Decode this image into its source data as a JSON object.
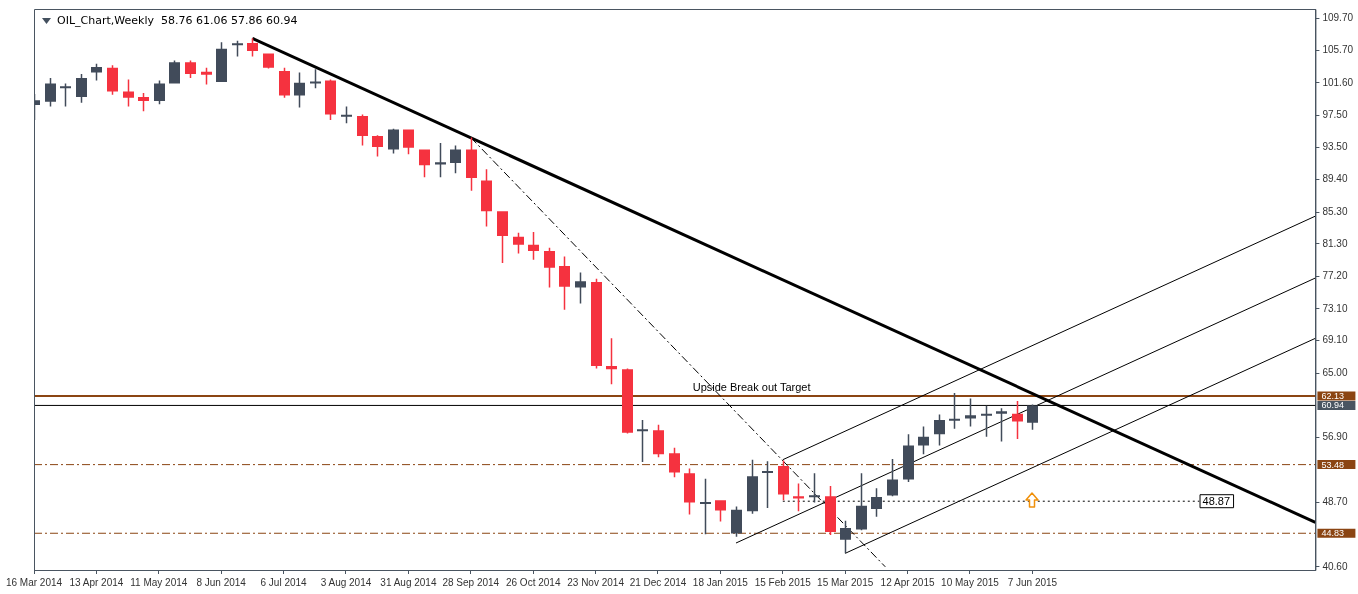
{
  "chart_data": {
    "type": "candlestick",
    "title": "OIL_Chart,Weekly  58.76 61.06 57.86 60.94",
    "x": [
      "2014-03-16",
      "2014-03-23",
      "2014-03-30",
      "2014-04-06",
      "2014-04-13",
      "2014-04-20",
      "2014-04-27",
      "2014-05-04",
      "2014-05-11",
      "2014-05-18",
      "2014-05-25",
      "2014-06-01",
      "2014-06-08",
      "2014-06-15",
      "2014-06-22",
      "2014-06-29",
      "2014-07-06",
      "2014-07-13",
      "2014-07-20",
      "2014-07-27",
      "2014-08-03",
      "2014-08-10",
      "2014-08-17",
      "2014-08-24",
      "2014-08-31",
      "2014-09-07",
      "2014-09-14",
      "2014-09-21",
      "2014-09-28",
      "2014-10-05",
      "2014-10-12",
      "2014-10-19",
      "2014-10-26",
      "2014-11-02",
      "2014-11-09",
      "2014-11-16",
      "2014-11-23",
      "2014-11-30",
      "2014-12-07",
      "2014-12-14",
      "2014-12-21",
      "2014-12-28",
      "2015-01-04",
      "2015-01-11",
      "2015-01-18",
      "2015-01-25",
      "2015-02-01",
      "2015-02-08",
      "2015-02-15",
      "2015-02-22",
      "2015-03-01",
      "2015-03-08",
      "2015-03-15",
      "2015-03-22",
      "2015-03-29",
      "2015-04-05",
      "2015-04-12",
      "2015-04-19",
      "2015-04-26",
      "2015-05-03",
      "2015-05-10",
      "2015-05-17",
      "2015-05-24",
      "2015-05-31",
      "2015-06-07"
    ],
    "ohlc": [
      [
        98.8,
        100.2,
        96.9,
        99.4
      ],
      [
        99.2,
        102.2,
        98.6,
        101.5
      ],
      [
        101.0,
        101.5,
        98.6,
        101.1
      ],
      [
        99.8,
        102.7,
        99.1,
        102.2
      ],
      [
        102.9,
        104.0,
        101.9,
        103.6
      ],
      [
        103.5,
        103.8,
        100.1,
        100.5
      ],
      [
        100.5,
        102.0,
        98.6,
        99.7
      ],
      [
        99.8,
        100.3,
        98.0,
        99.3
      ],
      [
        99.3,
        101.9,
        98.9,
        101.5
      ],
      [
        101.5,
        104.4,
        101.5,
        104.2
      ],
      [
        104.2,
        104.4,
        102.2,
        102.7
      ],
      [
        103.0,
        103.5,
        101.4,
        102.6
      ],
      [
        101.7,
        106.7,
        101.7,
        105.9
      ],
      [
        106.4,
        106.9,
        104.9,
        106.5
      ],
      [
        106.6,
        107.2,
        104.9,
        105.6
      ],
      [
        105.3,
        105.3,
        103.4,
        103.5
      ],
      [
        103.1,
        103.5,
        99.7,
        100.0
      ],
      [
        100.0,
        102.9,
        98.5,
        101.6
      ],
      [
        101.6,
        103.3,
        100.9,
        101.7
      ],
      [
        101.9,
        102.0,
        96.9,
        97.6
      ],
      [
        97.4,
        98.6,
        96.5,
        97.5
      ],
      [
        97.4,
        97.6,
        93.7,
        94.9
      ],
      [
        94.9,
        95.0,
        92.3,
        93.5
      ],
      [
        93.2,
        95.8,
        92.7,
        95.7
      ],
      [
        95.7,
        95.7,
        92.6,
        93.4
      ],
      [
        93.2,
        93.2,
        89.7,
        91.2
      ],
      [
        91.3,
        94.0,
        89.7,
        91.6
      ],
      [
        91.5,
        93.7,
        90.2,
        93.2
      ],
      [
        93.2,
        94.7,
        88.0,
        89.6
      ],
      [
        89.3,
        90.7,
        83.5,
        85.4
      ],
      [
        85.4,
        85.4,
        78.9,
        82.3
      ],
      [
        82.2,
        82.7,
        80.1,
        81.2
      ],
      [
        81.2,
        82.8,
        79.3,
        80.4
      ],
      [
        80.4,
        80.8,
        75.8,
        78.3
      ],
      [
        78.5,
        79.7,
        73.0,
        75.9
      ],
      [
        75.8,
        77.7,
        73.8,
        76.6
      ],
      [
        76.5,
        76.9,
        65.6,
        65.9
      ],
      [
        65.9,
        69.4,
        63.6,
        65.5
      ],
      [
        65.5,
        65.6,
        57.4,
        57.5
      ],
      [
        57.7,
        59.1,
        53.8,
        57.9
      ],
      [
        57.8,
        58.5,
        54.4,
        54.8
      ],
      [
        54.9,
        55.6,
        51.9,
        52.5
      ],
      [
        52.4,
        53.0,
        47.2,
        48.7
      ],
      [
        48.6,
        51.7,
        44.7,
        48.7
      ],
      [
        49.0,
        49.0,
        46.3,
        47.7
      ],
      [
        44.8,
        48.2,
        44.4,
        47.8
      ],
      [
        47.6,
        54.1,
        47.3,
        52.0
      ],
      [
        52.5,
        53.9,
        48.0,
        52.6
      ],
      [
        53.3,
        54.0,
        49.0,
        49.7
      ],
      [
        49.5,
        51.1,
        47.6,
        49.2
      ],
      [
        49.4,
        52.4,
        48.7,
        49.6
      ],
      [
        49.5,
        50.8,
        44.6,
        45.0
      ],
      [
        44.0,
        46.4,
        42.3,
        45.5
      ],
      [
        45.3,
        52.4,
        45.2,
        48.3
      ],
      [
        47.9,
        50.5,
        46.9,
        49.4
      ],
      [
        49.6,
        54.2,
        49.5,
        51.6
      ],
      [
        51.6,
        57.3,
        51.3,
        55.9
      ],
      [
        55.9,
        58.3,
        54.8,
        57.0
      ],
      [
        57.3,
        59.8,
        55.9,
        59.1
      ],
      [
        59.1,
        62.5,
        58.0,
        59.2
      ],
      [
        59.3,
        61.8,
        58.3,
        59.7
      ],
      [
        59.7,
        60.9,
        57.0,
        59.8
      ],
      [
        59.9,
        60.6,
        56.4,
        60.2
      ],
      [
        59.9,
        61.5,
        56.7,
        58.9
      ],
      [
        58.76,
        61.06,
        57.86,
        60.94
      ]
    ],
    "colors": [
      "#414b5a",
      "#414b5a",
      "#414b5a",
      "#414b5a",
      "#414b5a",
      "#f5323f",
      "#f5323f",
      "#f5323f",
      "#414b5a",
      "#414b5a",
      "#f5323f",
      "#f5323f",
      "#414b5a",
      "#414b5a",
      "#f5323f",
      "#f5323f",
      "#f5323f",
      "#414b5a",
      "#414b5a",
      "#f5323f",
      "#414b5a",
      "#f5323f",
      "#f5323f",
      "#414b5a",
      "#f5323f",
      "#f5323f",
      "#414b5a",
      "#414b5a",
      "#f5323f",
      "#f5323f",
      "#f5323f",
      "#f5323f",
      "#f5323f",
      "#f5323f",
      "#f5323f",
      "#414b5a",
      "#f5323f",
      "#f5323f",
      "#f5323f",
      "#414b5a",
      "#f5323f",
      "#f5323f",
      "#f5323f",
      "#414b5a",
      "#f5323f",
      "#414b5a",
      "#414b5a",
      "#414b5a",
      "#f5323f",
      "#f5323f",
      "#414b5a",
      "#f5323f",
      "#414b5a",
      "#414b5a",
      "#414b5a",
      "#414b5a",
      "#414b5a",
      "#414b5a",
      "#414b5a",
      "#414b5a",
      "#414b5a",
      "#414b5a",
      "#414b5a",
      "#f5323f",
      "#414b5a"
    ],
    "series": [
      {
        "type": "line",
        "color": "#000000",
        "line_style": "solid",
        "x": [
          "2014-06-22",
          "2015-10-12"
        ],
        "values": [
          107.2,
          46.2
        ]
      },
      {
        "type": "line",
        "color": "#000000",
        "line_style": "dashed",
        "x": [
          "2014-09-28",
          "2015-04-02"
        ],
        "values": [
          94.7,
          40.6
        ]
      },
      {
        "type": "line",
        "color": "#000000",
        "line_style": "solid",
        "x": [
          "2015-02-15",
          "2015-10-12"
        ],
        "values": [
          54.1,
          84.8
        ]
      },
      {
        "type": "line",
        "color": "#000000",
        "line_style": "solid",
        "x": [
          "2015-01-25",
          "2015-10-12"
        ],
        "values": [
          43.6,
          77.0
        ]
      },
      {
        "type": "line",
        "color": "#000000",
        "line_style": "solid",
        "x": [
          "2015-03-15",
          "2015-10-12"
        ],
        "values": [
          42.3,
          69.4
        ]
      },
      {
        "type": "line",
        "color": "#000000",
        "line_style": "dotted",
        "x": [
          "2015-02-15",
          "2015-08-21"
        ],
        "values": [
          48.87,
          48.87
        ]
      }
    ],
    "ref_lines": [
      {
        "axis": "y",
        "value": 62.13,
        "label": "62.13",
        "color": "#8b4513",
        "line_style": "solid"
      },
      {
        "axis": "y",
        "value": 60.94,
        "label": "60.94",
        "color": "#000000",
        "line_style": "solid"
      },
      {
        "axis": "y",
        "value": 53.48,
        "label": "53.48",
        "color": "#8b4513",
        "line_style": "dashed"
      },
      {
        "axis": "y",
        "value": 44.83,
        "label": "44.83",
        "color": "#8b4513",
        "line_style": "dashed"
      }
    ],
    "annotations": [
      {
        "text": "Upside Break out Target",
        "x": "2015-02-01",
        "y": 62.13
      },
      {
        "text": "48.87",
        "x": "2015-08-21",
        "y": 48.87
      }
    ],
    "xlim": [
      "2014-03-16",
      "2015-10-12"
    ],
    "xticks": [
      {
        "value": "2014-03-16",
        "label": "16 Mar 2014"
      },
      {
        "value": "2014-04-13",
        "label": "13 Apr 2014"
      },
      {
        "value": "2014-05-11",
        "label": "11 May 2014"
      },
      {
        "value": "2014-06-08",
        "label": "8 Jun 2014"
      },
      {
        "value": "2014-07-06",
        "label": "6 Jul 2014"
      },
      {
        "value": "2014-08-03",
        "label": "3 Aug 2014"
      },
      {
        "value": "2014-08-31",
        "label": "31 Aug 2014"
      },
      {
        "value": "2014-09-28",
        "label": "28 Sep 2014"
      },
      {
        "value": "2014-10-26",
        "label": "26 Oct 2014"
      },
      {
        "value": "2014-11-23",
        "label": "23 Nov 2014"
      },
      {
        "value": "2014-12-21",
        "label": "21 Dec 2014"
      },
      {
        "value": "2015-01-18",
        "label": "18 Jan 2015"
      },
      {
        "value": "2015-02-15",
        "label": "15 Feb 2015"
      },
      {
        "value": "2015-03-15",
        "label": "15 Mar 2015"
      },
      {
        "value": "2015-04-12",
        "label": "12 Apr 2015"
      },
      {
        "value": "2015-05-10",
        "label": "10 May 2015"
      },
      {
        "value": "2015-06-07",
        "label": "7 Jun 2015"
      }
    ],
    "ylim": [
      40.2,
      110.9
    ],
    "yticks": [
      {
        "value": 40.6,
        "label": "40.60"
      },
      {
        "value": 48.7,
        "label": "48.70"
      },
      {
        "value": 56.9,
        "label": "56.90"
      },
      {
        "value": 65.0,
        "label": "65.00"
      },
      {
        "value": 69.1,
        "label": "69.10"
      },
      {
        "value": 73.1,
        "label": "73.10"
      },
      {
        "value": 77.2,
        "label": "77.20"
      },
      {
        "value": 81.3,
        "label": "81.30"
      },
      {
        "value": 85.3,
        "label": "85.30"
      },
      {
        "value": 89.4,
        "label": "89.40"
      },
      {
        "value": 93.5,
        "label": "93.50"
      },
      {
        "value": 97.5,
        "label": "97.50"
      },
      {
        "value": 101.6,
        "label": "101.60"
      },
      {
        "value": 105.7,
        "label": "105.70"
      },
      {
        "value": 109.7,
        "label": "109.70"
      }
    ],
    "grid": false,
    "legend": false
  }
}
